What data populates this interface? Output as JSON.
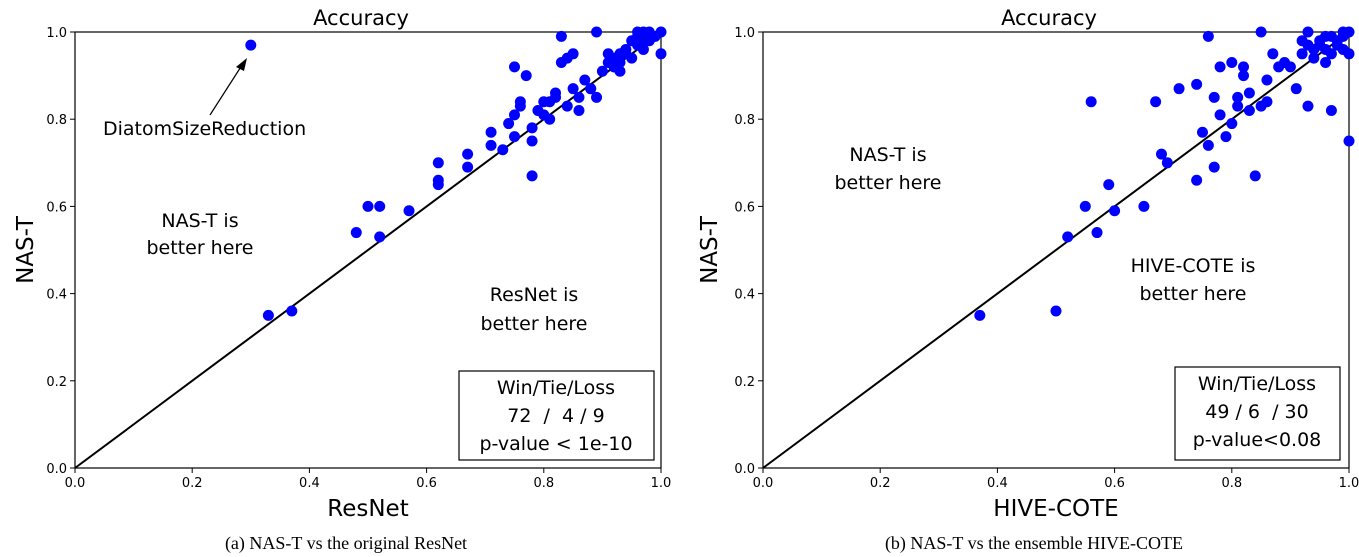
{
  "chart_data": [
    {
      "type": "scatter",
      "title": "Accuracy",
      "xlabel": "ResNet",
      "ylabel": "NAS-T",
      "xlim": [
        0,
        1
      ],
      "ylim": [
        0,
        1
      ],
      "xticks": [
        "0.0",
        "0.2",
        "0.4",
        "0.6",
        "0.8",
        "1.0"
      ],
      "yticks": [
        "0.0",
        "0.2",
        "0.4",
        "0.6",
        "0.8",
        "1.0"
      ],
      "diagonal": true,
      "grid": false,
      "point_color": "#0000ff",
      "annotations": {
        "pointer_label": "DiatomSizeReduction",
        "pointer_target": [
          0.3,
          0.97
        ],
        "upper_region": [
          "NAS-T is",
          "better here"
        ],
        "lower_region": [
          "ResNet is",
          "better here"
        ]
      },
      "stats_box": [
        "Win/Tie/Loss",
        "72  /  4 / 9",
        "p-value < 1e-10"
      ],
      "caption": "(a) NAS-T vs the original ResNet",
      "points": [
        [
          0.3,
          0.97
        ],
        [
          0.33,
          0.35
        ],
        [
          0.37,
          0.36
        ],
        [
          0.48,
          0.54
        ],
        [
          0.5,
          0.6
        ],
        [
          0.52,
          0.53
        ],
        [
          0.52,
          0.6
        ],
        [
          0.57,
          0.59
        ],
        [
          0.62,
          0.7
        ],
        [
          0.62,
          0.66
        ],
        [
          0.62,
          0.65
        ],
        [
          0.67,
          0.72
        ],
        [
          0.67,
          0.69
        ],
        [
          0.71,
          0.77
        ],
        [
          0.71,
          0.74
        ],
        [
          0.73,
          0.73
        ],
        [
          0.74,
          0.79
        ],
        [
          0.75,
          0.81
        ],
        [
          0.75,
          0.76
        ],
        [
          0.75,
          0.92
        ],
        [
          0.76,
          0.83
        ],
        [
          0.76,
          0.84
        ],
        [
          0.77,
          0.9
        ],
        [
          0.78,
          0.78
        ],
        [
          0.78,
          0.75
        ],
        [
          0.78,
          0.67
        ],
        [
          0.79,
          0.82
        ],
        [
          0.8,
          0.84
        ],
        [
          0.8,
          0.81
        ],
        [
          0.81,
          0.8
        ],
        [
          0.81,
          0.84
        ],
        [
          0.82,
          0.86
        ],
        [
          0.82,
          0.85
        ],
        [
          0.83,
          0.99
        ],
        [
          0.83,
          0.93
        ],
        [
          0.84,
          0.83
        ],
        [
          0.84,
          0.94
        ],
        [
          0.85,
          0.87
        ],
        [
          0.85,
          0.95
        ],
        [
          0.86,
          0.85
        ],
        [
          0.86,
          0.82
        ],
        [
          0.87,
          0.89
        ],
        [
          0.88,
          0.87
        ],
        [
          0.88,
          0.87
        ],
        [
          0.89,
          1.0
        ],
        [
          0.89,
          0.85
        ],
        [
          0.9,
          0.91
        ],
        [
          0.91,
          0.93
        ],
        [
          0.91,
          0.95
        ],
        [
          0.92,
          0.92
        ],
        [
          0.92,
          0.94
        ],
        [
          0.92,
          0.92
        ],
        [
          0.93,
          0.95
        ],
        [
          0.93,
          0.93
        ],
        [
          0.93,
          0.91
        ],
        [
          0.94,
          0.96
        ],
        [
          0.94,
          0.95
        ],
        [
          0.95,
          0.98
        ],
        [
          0.95,
          0.94
        ],
        [
          0.96,
          0.99
        ],
        [
          0.96,
          0.97
        ],
        [
          0.96,
          1.0
        ],
        [
          0.97,
          0.96
        ],
        [
          0.97,
          0.99
        ],
        [
          0.97,
          0.98
        ],
        [
          0.98,
          1.0
        ],
        [
          0.98,
          0.98
        ],
        [
          0.99,
          0.99
        ],
        [
          1.0,
          1.0
        ],
        [
          1.0,
          0.95
        ],
        [
          0.97,
          1.0
        ],
        [
          0.98,
          0.99
        ]
      ]
    },
    {
      "type": "scatter",
      "title": "Accuracy",
      "xlabel": "HIVE-COTE",
      "ylabel": "NAS-T",
      "xlim": [
        0,
        1
      ],
      "ylim": [
        0,
        1
      ],
      "xticks": [
        "0.0",
        "0.2",
        "0.4",
        "0.6",
        "0.8",
        "1.0"
      ],
      "yticks": [
        "0.0",
        "0.2",
        "0.4",
        "0.6",
        "0.8",
        "1.0"
      ],
      "diagonal": true,
      "grid": false,
      "point_color": "#0000ff",
      "annotations": {
        "upper_region": [
          "NAS-T is",
          "better here"
        ],
        "lower_region": [
          "HIVE-COTE is",
          "better here"
        ]
      },
      "stats_box": [
        "Win/Tie/Loss",
        "49 / 6  / 30",
        "p-value<0.08"
      ],
      "caption": "(b) NAS-T vs the ensemble HIVE-COTE",
      "points": [
        [
          0.37,
          0.35
        ],
        [
          0.5,
          0.36
        ],
        [
          0.52,
          0.53
        ],
        [
          0.55,
          0.6
        ],
        [
          0.56,
          0.84
        ],
        [
          0.57,
          0.54
        ],
        [
          0.59,
          0.65
        ],
        [
          0.6,
          0.59
        ],
        [
          0.65,
          0.6
        ],
        [
          0.67,
          0.84
        ],
        [
          0.68,
          0.72
        ],
        [
          0.69,
          0.7
        ],
        [
          0.71,
          0.87
        ],
        [
          0.74,
          0.88
        ],
        [
          0.74,
          0.66
        ],
        [
          0.75,
          0.77
        ],
        [
          0.76,
          0.74
        ],
        [
          0.76,
          0.99
        ],
        [
          0.77,
          0.69
        ],
        [
          0.77,
          0.85
        ],
        [
          0.78,
          0.92
        ],
        [
          0.78,
          0.81
        ],
        [
          0.79,
          0.76
        ],
        [
          0.8,
          0.93
        ],
        [
          0.8,
          0.79
        ],
        [
          0.81,
          0.85
        ],
        [
          0.81,
          0.83
        ],
        [
          0.82,
          0.9
        ],
        [
          0.82,
          0.92
        ],
        [
          0.83,
          0.86
        ],
        [
          0.83,
          0.82
        ],
        [
          0.84,
          0.67
        ],
        [
          0.85,
          1.0
        ],
        [
          0.85,
          0.83
        ],
        [
          0.86,
          0.84
        ],
        [
          0.86,
          0.89
        ],
        [
          0.87,
          0.95
        ],
        [
          0.88,
          0.92
        ],
        [
          0.89,
          0.93
        ],
        [
          0.9,
          0.92
        ],
        [
          0.91,
          0.87
        ],
        [
          0.92,
          0.98
        ],
        [
          0.92,
          0.95
        ],
        [
          0.93,
          1.0
        ],
        [
          0.93,
          0.97
        ],
        [
          0.93,
          0.83
        ],
        [
          0.94,
          0.96
        ],
        [
          0.94,
          0.94
        ],
        [
          0.95,
          0.98
        ],
        [
          0.95,
          0.97
        ],
        [
          0.96,
          0.99
        ],
        [
          0.96,
          0.93
        ],
        [
          0.97,
          0.95
        ],
        [
          0.97,
          0.82
        ],
        [
          0.98,
          0.98
        ],
        [
          0.98,
          0.97
        ],
        [
          0.99,
          1.0
        ],
        [
          0.99,
          0.99
        ],
        [
          1.0,
          1.0
        ],
        [
          1.0,
          0.95
        ],
        [
          1.0,
          0.75
        ],
        [
          0.99,
          0.96
        ],
        [
          0.96,
          0.96
        ],
        [
          0.97,
          0.99
        ]
      ]
    }
  ]
}
